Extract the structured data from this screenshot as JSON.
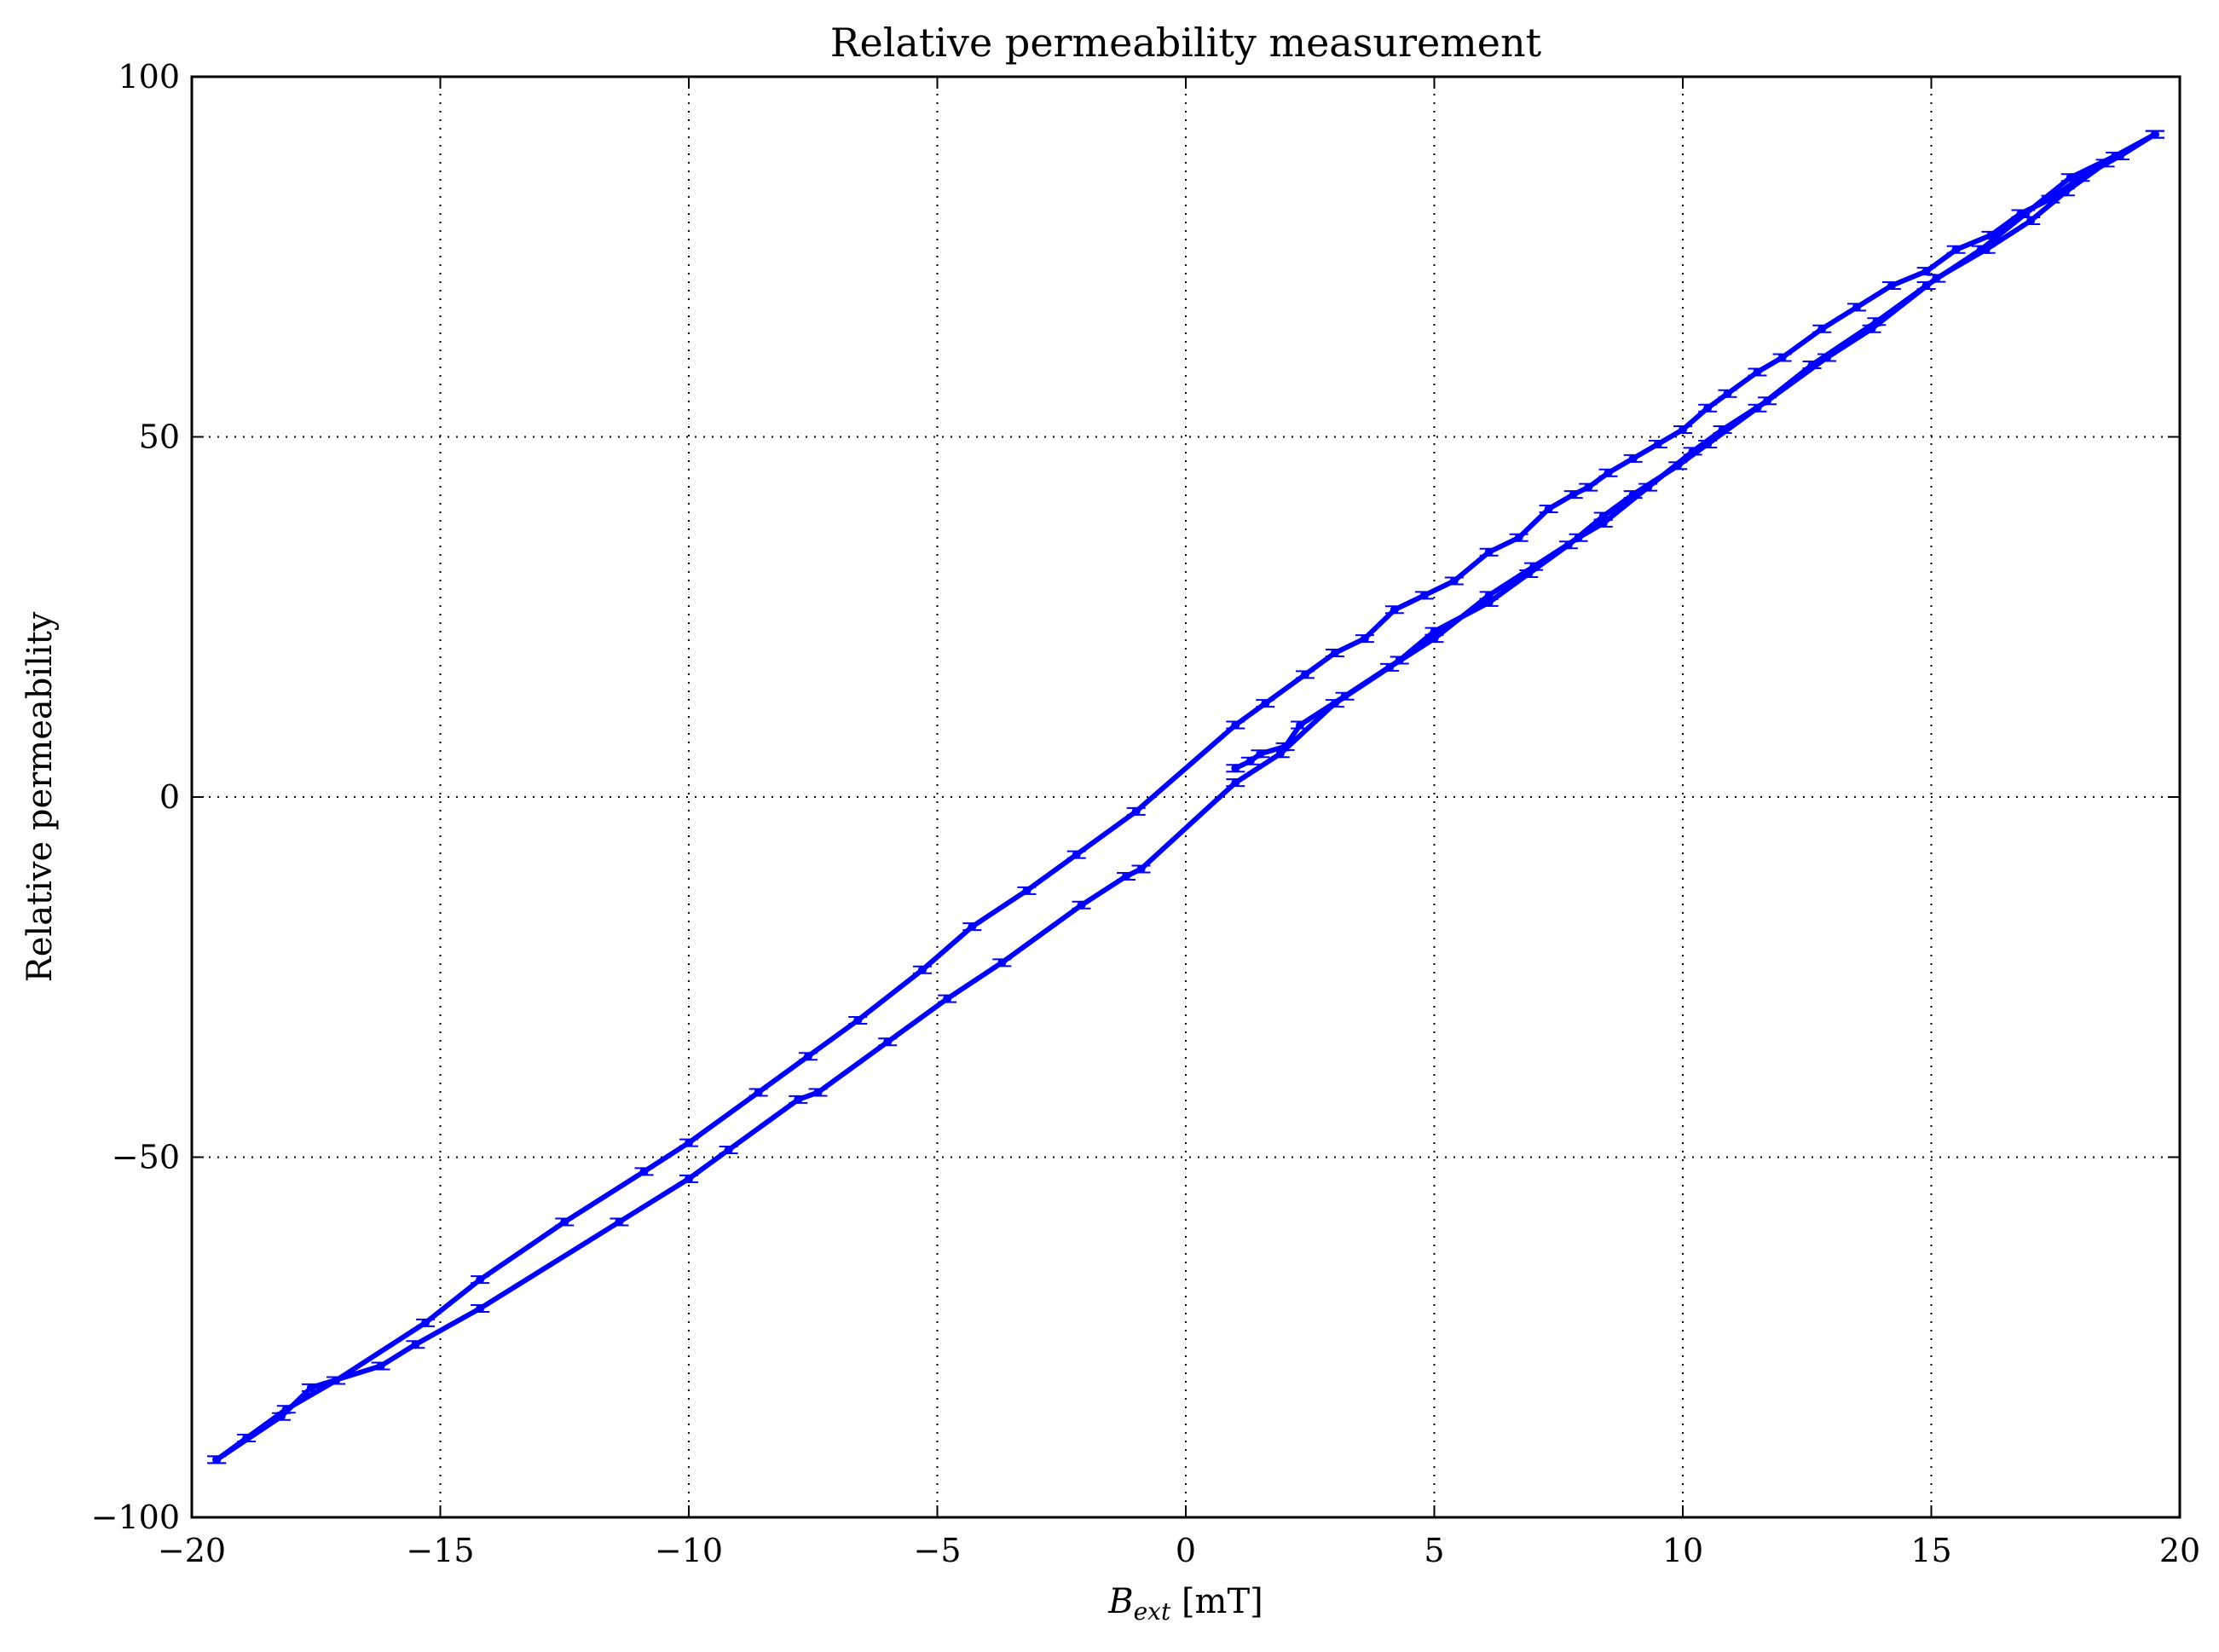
{
  "chart_data": {
    "type": "line",
    "title": "Relative permeability measurement",
    "xlabel": "B",
    "xlabel_subscript": "ext",
    "xlabel_unit": " [mT]",
    "ylabel": "Relative permeability",
    "xlim": [
      -20,
      20
    ],
    "ylim": [
      -100,
      100
    ],
    "xticks": [
      -20,
      -15,
      -10,
      -5,
      0,
      5,
      10,
      15,
      20
    ],
    "yticks": [
      -100,
      -50,
      0,
      50,
      100
    ],
    "xtick_labels": [
      "−20",
      "−15",
      "−10",
      "−5",
      "0",
      "5",
      "10",
      "15",
      "20"
    ],
    "ytick_labels": [
      "−100",
      "−50",
      "0",
      "50",
      "100"
    ],
    "grid": true,
    "grid_style": "dotted",
    "line_color": "#0000ff",
    "series": [
      {
        "x": [
          1.0,
          1.3,
          1.5,
          2.0,
          2.3,
          3.2,
          4.3,
          5.0,
          6.1,
          6.9,
          7.7,
          8.4,
          9.0,
          9.9,
          10.5,
          11.5,
          12.6,
          13.9,
          14.9,
          16.0,
          16.9,
          17.8,
          18.7,
          19.5
        ],
        "y": [
          4,
          5,
          6,
          7,
          10,
          14,
          19,
          23,
          27,
          31,
          35,
          39,
          42,
          46,
          49,
          54,
          60,
          66,
          71,
          76,
          81,
          86,
          89,
          92
        ]
      },
      {
        "x": [
          19.5,
          18.8,
          18.0,
          17.4,
          16.8,
          16.2,
          15.5,
          14.9,
          14.2,
          13.5,
          12.8,
          12.0,
          11.5,
          10.9,
          10.5,
          10.0,
          9.5,
          9.0,
          8.5,
          8.1,
          7.8,
          7.3,
          6.7,
          6.1,
          5.4,
          4.8,
          4.2,
          3.6,
          3.0,
          2.4,
          1.6,
          1.0,
          -1.0,
          -2.2,
          -3.2,
          -4.3,
          -5.3,
          -6.6,
          -7.6,
          -8.6,
          -10.0,
          -10.9,
          -12.5,
          -14.2,
          -15.3,
          -17.1,
          -18.1,
          -18.9,
          -19.5
        ],
        "y": [
          92,
          89,
          86,
          83,
          81,
          78,
          76,
          73,
          71,
          68,
          65,
          61,
          59,
          56,
          54,
          51,
          49,
          47,
          45,
          43,
          42,
          40,
          36,
          34,
          30,
          28,
          26,
          22,
          20,
          17,
          13,
          10,
          -2,
          -8,
          -13,
          -18,
          -24,
          -31,
          -36,
          -41,
          -48,
          -52,
          -59,
          -67,
          -73,
          -81,
          -85,
          -89,
          -92
        ]
      },
      {
        "x": [
          -19.5,
          -18.2,
          -17.6,
          -16.2,
          -15.5,
          -14.2,
          -11.4,
          -10.0,
          -9.2,
          -7.8,
          -7.4,
          -6.0,
          -4.8,
          -3.7,
          -2.1,
          -1.2,
          -0.9,
          1.0,
          1.9,
          3.0,
          4.1,
          5.0,
          6.1,
          7.0,
          7.9,
          8.4,
          9.3,
          10.2,
          10.8,
          11.7,
          12.9,
          13.8,
          15.1,
          16.1,
          17.0,
          17.7,
          18.5,
          19.5
        ],
        "y": [
          -92,
          -86,
          -82,
          -79,
          -76,
          -71,
          -59,
          -53,
          -49,
          -42,
          -41,
          -34,
          -28,
          -23,
          -15,
          -11,
          -10,
          2,
          6,
          13,
          18,
          22,
          28,
          32,
          36,
          38,
          43,
          48,
          51,
          55,
          61,
          65,
          72,
          76,
          80,
          84,
          88,
          92
        ]
      }
    ]
  }
}
